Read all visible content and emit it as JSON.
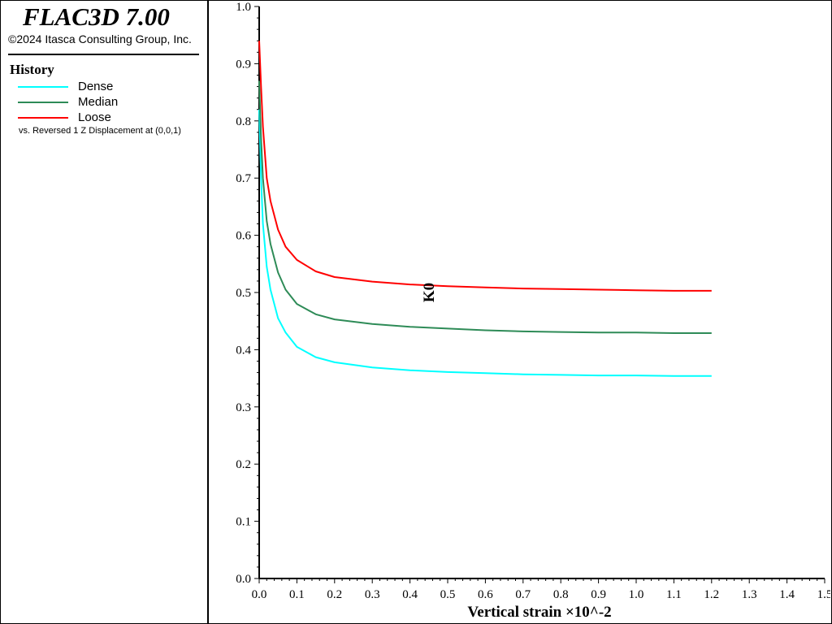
{
  "app": {
    "title": "FLAC3D 7.00",
    "copyright": "©2024 Itasca Consulting Group, Inc."
  },
  "legend": {
    "title": "History",
    "note": "vs. Reversed 1 Z Displacement at (0,0,1)",
    "items": [
      {
        "label": "Dense",
        "color": "#00ffff"
      },
      {
        "label": "Median",
        "color": "#2e8b57"
      },
      {
        "label": "Loose",
        "color": "#ff0000"
      }
    ]
  },
  "chart_data": {
    "type": "line",
    "xlabel": "Vertical strain ×10^-2",
    "ylabel": "K0",
    "xlim": [
      0,
      1.5
    ],
    "ylim": [
      0,
      1.0
    ],
    "xticks": [
      "0.0",
      "0.1",
      "0.2",
      "0.3",
      "0.4",
      "0.5",
      "0.6",
      "0.7",
      "0.8",
      "0.9",
      "1.0",
      "1.1",
      "1.2",
      "1.3",
      "1.4",
      "1.5"
    ],
    "yticks": [
      "0.0",
      "0.1",
      "0.2",
      "0.3",
      "0.4",
      "0.5",
      "0.6",
      "0.7",
      "0.8",
      "0.9",
      "1.0"
    ],
    "grid": false,
    "series": [
      {
        "name": "Dense",
        "color": "#00ffff",
        "x": [
          0,
          0.005,
          0.01,
          0.02,
          0.03,
          0.05,
          0.07,
          0.1,
          0.15,
          0.2,
          0.3,
          0.4,
          0.5,
          0.6,
          0.7,
          0.8,
          0.9,
          1.0,
          1.1,
          1.2
        ],
        "y": [
          0.82,
          0.7,
          0.62,
          0.545,
          0.505,
          0.455,
          0.43,
          0.405,
          0.387,
          0.378,
          0.369,
          0.364,
          0.361,
          0.359,
          0.357,
          0.356,
          0.355,
          0.355,
          0.354,
          0.354
        ]
      },
      {
        "name": "Median",
        "color": "#2e8b57",
        "x": [
          0,
          0.005,
          0.01,
          0.02,
          0.03,
          0.05,
          0.07,
          0.1,
          0.15,
          0.2,
          0.3,
          0.4,
          0.5,
          0.6,
          0.7,
          0.8,
          0.9,
          1.0,
          1.1,
          1.2
        ],
        "y": [
          0.87,
          0.77,
          0.7,
          0.625,
          0.585,
          0.535,
          0.505,
          0.48,
          0.462,
          0.453,
          0.445,
          0.44,
          0.437,
          0.434,
          0.432,
          0.431,
          0.43,
          0.43,
          0.429,
          0.429
        ]
      },
      {
        "name": "Loose",
        "color": "#ff0000",
        "x": [
          0,
          0.005,
          0.01,
          0.02,
          0.03,
          0.05,
          0.07,
          0.1,
          0.15,
          0.2,
          0.3,
          0.4,
          0.5,
          0.6,
          0.7,
          0.8,
          0.9,
          1.0,
          1.1,
          1.2
        ],
        "y": [
          0.94,
          0.86,
          0.79,
          0.7,
          0.66,
          0.61,
          0.58,
          0.557,
          0.537,
          0.527,
          0.519,
          0.514,
          0.511,
          0.509,
          0.507,
          0.506,
          0.505,
          0.504,
          0.503,
          0.503
        ]
      }
    ]
  }
}
